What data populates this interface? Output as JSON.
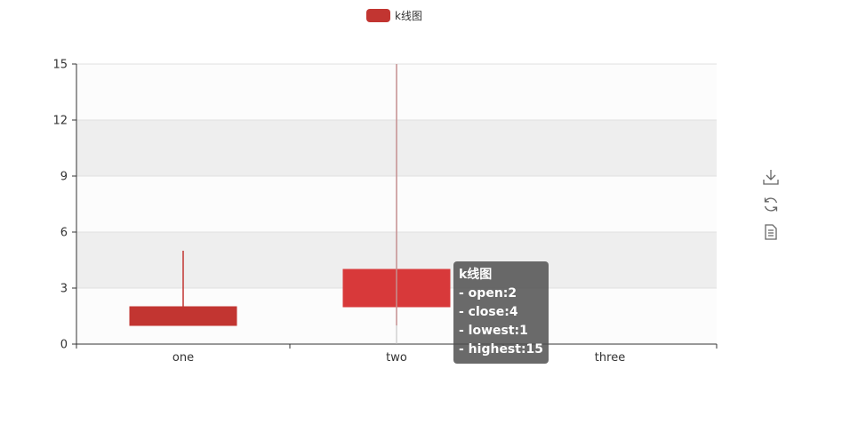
{
  "legend": {
    "label": "k线图",
    "color": "#c23531"
  },
  "toolbox": [
    {
      "name": "save-as-image-icon"
    },
    {
      "name": "restore-icon"
    },
    {
      "name": "data-view-icon"
    }
  ],
  "tooltip": {
    "title": "k线图",
    "lines": [
      "- open:2",
      "- close:4",
      "- lowest:1",
      "- highest:15"
    ]
  },
  "chart_data": {
    "type": "candlestick",
    "categories": [
      "one",
      "two",
      "three"
    ],
    "series": [
      {
        "name": "k线图",
        "values": [
          {
            "open": 2,
            "close": 1,
            "lowest": 1,
            "highest": 5
          },
          {
            "open": 2,
            "close": 4,
            "lowest": 1,
            "highest": 15
          },
          null
        ]
      }
    ],
    "ylim": [
      0,
      15
    ],
    "yticks": [
      0,
      3,
      6,
      9,
      12,
      15
    ],
    "grid": "split-area",
    "colors": {
      "up": "#d8393a",
      "down": "#c23531",
      "axis": "#333333",
      "split": "#e0e0e0",
      "band_a": "#fcfcfc",
      "band_b": "#eeeeee"
    }
  }
}
